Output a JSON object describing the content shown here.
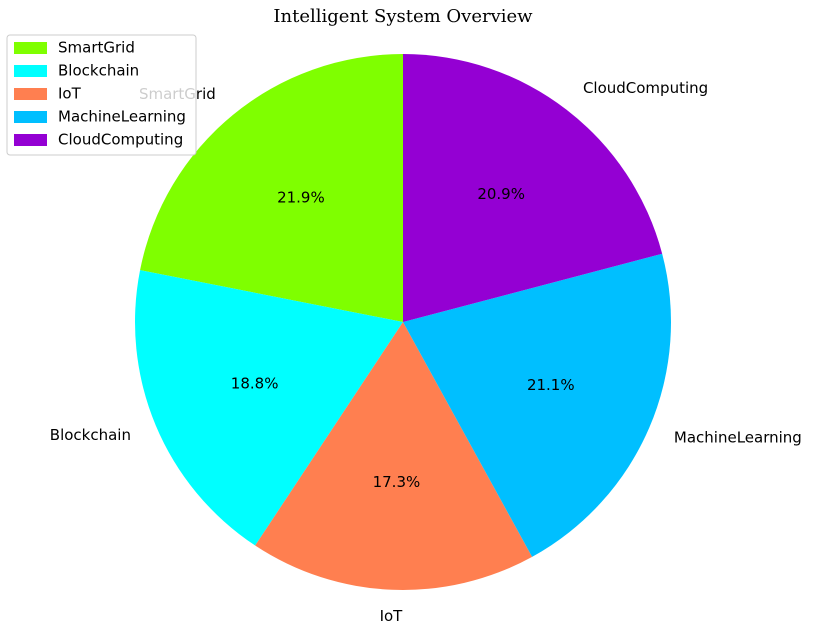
{
  "chart_data": {
    "type": "pie",
    "title": "Intelligent System Overview",
    "categories": [
      "SmartGrid",
      "Blockchain",
      "IoT",
      "MachineLearning",
      "CloudComputing"
    ],
    "values": [
      21.9,
      18.8,
      17.3,
      21.1,
      20.9
    ],
    "percent_labels": [
      "21.9%",
      "18.8%",
      "17.3%",
      "21.1%",
      "20.9%"
    ],
    "colors": [
      "#7fff00",
      "#00ffff",
      "#ff7f50",
      "#00bfff",
      "#9400d3"
    ],
    "start_angle_deg": 90,
    "direction": "counterclockwise",
    "legend": {
      "position": "top-left",
      "entries": [
        "SmartGrid",
        "Blockchain",
        "IoT",
        "MachineLearning",
        "CloudComputing"
      ]
    }
  }
}
